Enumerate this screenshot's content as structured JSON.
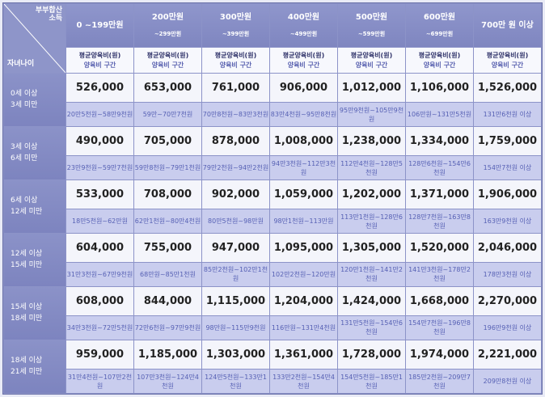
{
  "header": {
    "corner_top_line1": "부부합산",
    "corner_top_line2": "소득",
    "corner_bottom": "자녀나이",
    "income_brackets": [
      {
        "line1": "0 ~199만원",
        "line2": ""
      },
      {
        "line1": "200만원",
        "line2": "~299만원"
      },
      {
        "line1": "300만원",
        "line2": "~399만원"
      },
      {
        "line1": "400만원",
        "line2": "~499만원"
      },
      {
        "line1": "500만원",
        "line2": "~599만원"
      },
      {
        "line1": "600만원",
        "line2": "~699만원"
      },
      {
        "line1": "700만 원 이상",
        "line2": ""
      }
    ],
    "sub_line1": "평균양육비(원)",
    "sub_line2": "양육비 구간"
  },
  "rows": [
    {
      "age_line1": "0세 이상",
      "age_line2": "3세 미만",
      "averages": [
        "526,000",
        "653,000",
        "761,000",
        "906,000",
        "1,012,000",
        "1,106,000",
        "1,526,000"
      ],
      "ranges": [
        "20만5천원~58만9천원",
        "59만~70만7천원",
        "70만8천원~83만3천원",
        "83만4천원~95만8천원",
        "95만9천원~105만9천원",
        "106만원~131만5천원",
        "131만6천원 이상"
      ]
    },
    {
      "age_line1": "3세 이상",
      "age_line2": "6세 미만",
      "averages": [
        "490,000",
        "705,000",
        "878,000",
        "1,008,000",
        "1,238,000",
        "1,334,000",
        "1,759,000"
      ],
      "ranges": [
        "23만9천원~59만7천원",
        "59만8천원~79만1천원",
        "79만2천원~94만2천원",
        "94만3천원~112만3천원",
        "112만4천원~128만5천원",
        "128만6천원~154만6천원",
        "154만7천원 이상"
      ]
    },
    {
      "age_line1": "6세 이상",
      "age_line2": "12세 미만",
      "averages": [
        "533,000",
        "708,000",
        "902,000",
        "1,059,000",
        "1,202,000",
        "1,371,000",
        "1,906,000"
      ],
      "ranges": [
        "18만5천원~62만원",
        "62만1천원~80만4천원",
        "80만5천원~98만원",
        "98만1천원~113만원",
        "113만1천원~128만6천원",
        "128만7천원~163만8천원",
        "163만9천원 이상"
      ]
    },
    {
      "age_line1": "12세 이상",
      "age_line2": "15세 미만",
      "averages": [
        "604,000",
        "755,000",
        "947,000",
        "1,095,000",
        "1,305,000",
        "1,520,000",
        "2,046,000"
      ],
      "ranges": [
        "31만3천원~67만9천원",
        "68만원~85만1천원",
        "85만2천원~102만1천원",
        "102만2천원~120만원",
        "120만1천원~141만2천원",
        "141만3천원~178만2천원",
        "178만3천원 이상"
      ]
    },
    {
      "age_line1": "15세 이상",
      "age_line2": "18세 미만",
      "averages": [
        "608,000",
        "844,000",
        "1,115,000",
        "1,204,000",
        "1,424,000",
        "1,668,000",
        "2,270,000"
      ],
      "ranges": [
        "34만3천원~72만5천원",
        "72만6천원~97만9천원",
        "98만원~115만9천원",
        "116만원~131만4천원",
        "131만5천원~154만6천원",
        "154만7천원~196만8천원",
        "196만9천원 이상"
      ]
    },
    {
      "age_line1": "18세 이상",
      "age_line2": "21세 미만",
      "averages": [
        "959,000",
        "1,185,000",
        "1,303,000",
        "1,361,000",
        "1,728,000",
        "1,974,000",
        "2,221,000"
      ],
      "ranges": [
        "31만4천원~107만2천원",
        "107만3천원~124만4천원",
        "124만5천원~133만1천원",
        "133만2천원~154만4천원",
        "154만5천원~185만1천원",
        "185만2천원~209만7천원",
        "209만8천원 이상"
      ]
    }
  ]
}
